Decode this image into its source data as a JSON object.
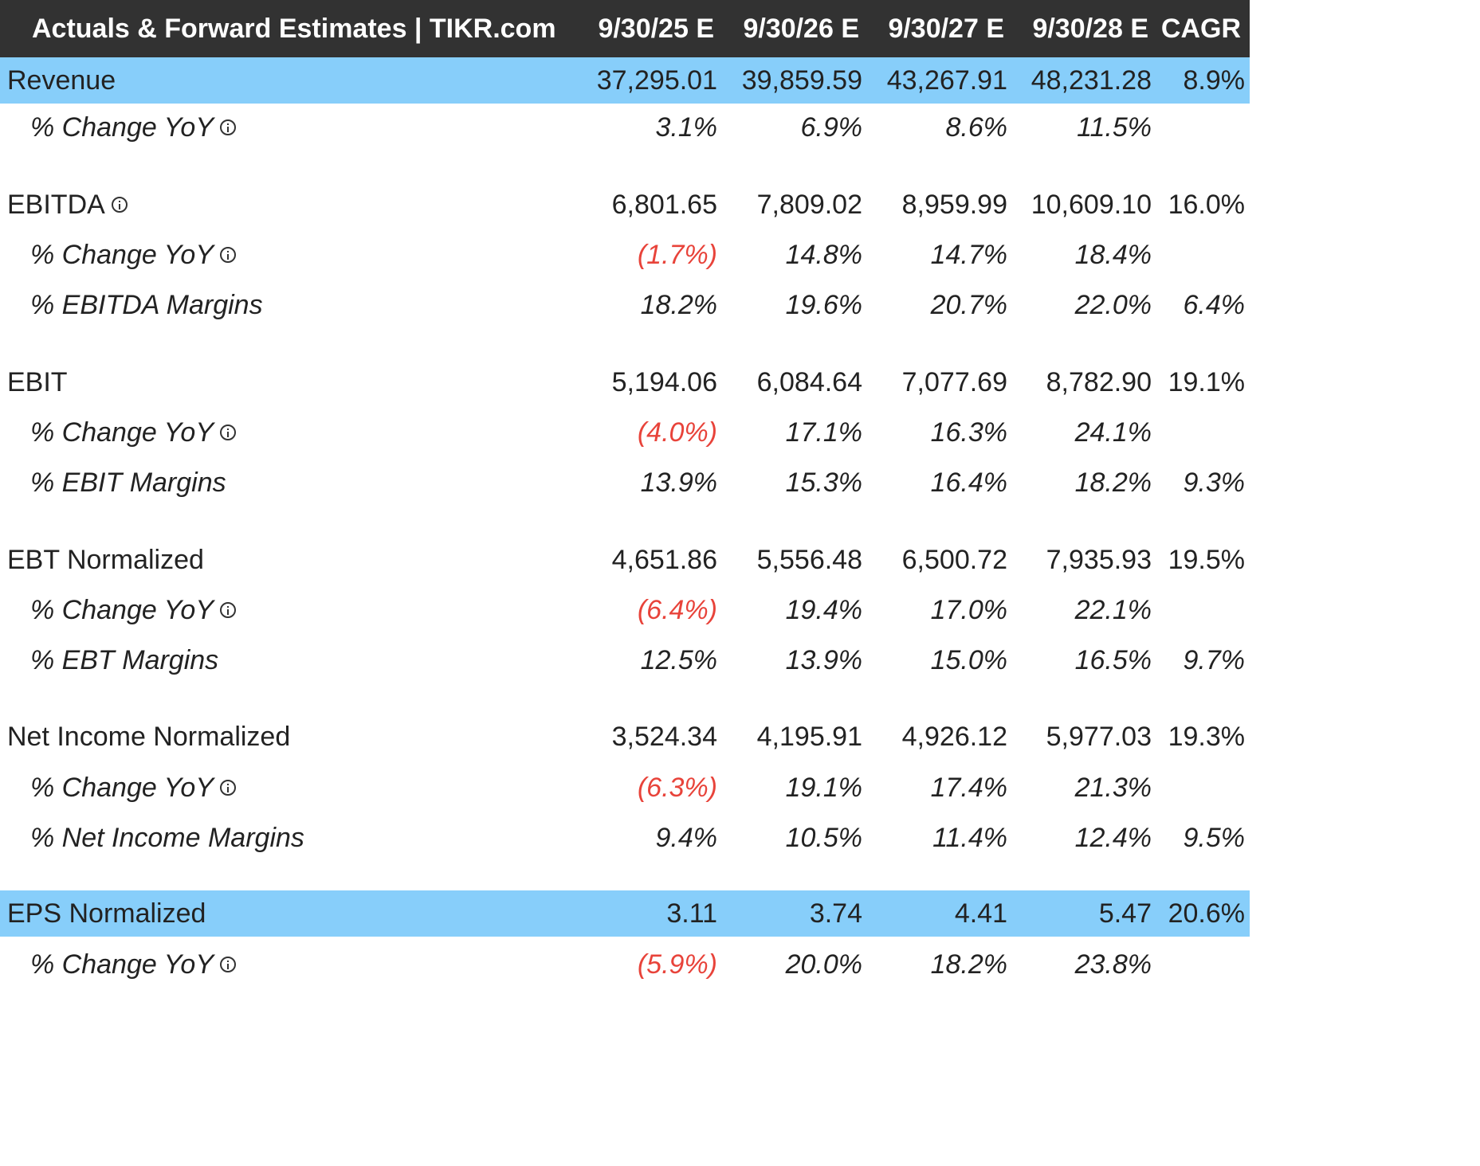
{
  "header": {
    "title": "Actuals & Forward Estimates | TIKR.com",
    "columns": [
      "9/30/25 E",
      "9/30/26 E",
      "9/30/27 E",
      "9/30/28 E",
      "CAGR"
    ]
  },
  "rows": [
    {
      "label": "Revenue",
      "values": [
        "37,295.01",
        "39,859.59",
        "43,267.91",
        "48,231.28",
        "8.9%"
      ]
    },
    {
      "label": "% Change YoY",
      "values": [
        "3.1%",
        "6.9%",
        "8.6%",
        "11.5%",
        ""
      ]
    },
    {
      "label": "EBITDA",
      "values": [
        "6,801.65",
        "7,809.02",
        "8,959.99",
        "10,609.10",
        "16.0%"
      ]
    },
    {
      "label": "% Change YoY",
      "values": [
        "(1.7%)",
        "14.8%",
        "14.7%",
        "18.4%",
        ""
      ]
    },
    {
      "label": "% EBITDA Margins",
      "values": [
        "18.2%",
        "19.6%",
        "20.7%",
        "22.0%",
        "6.4%"
      ]
    },
    {
      "label": "EBIT",
      "values": [
        "5,194.06",
        "6,084.64",
        "7,077.69",
        "8,782.90",
        "19.1%"
      ]
    },
    {
      "label": "% Change YoY",
      "values": [
        "(4.0%)",
        "17.1%",
        "16.3%",
        "24.1%",
        ""
      ]
    },
    {
      "label": "% EBIT Margins",
      "values": [
        "13.9%",
        "15.3%",
        "16.4%",
        "18.2%",
        "9.3%"
      ]
    },
    {
      "label": "EBT Normalized",
      "values": [
        "4,651.86",
        "5,556.48",
        "6,500.72",
        "7,935.93",
        "19.5%"
      ]
    },
    {
      "label": "% Change YoY",
      "values": [
        "(6.4%)",
        "19.4%",
        "17.0%",
        "22.1%",
        ""
      ]
    },
    {
      "label": "% EBT Margins",
      "values": [
        "12.5%",
        "13.9%",
        "15.0%",
        "16.5%",
        "9.7%"
      ]
    },
    {
      "label": "Net Income Normalized",
      "values": [
        "3,524.34",
        "4,195.91",
        "4,926.12",
        "5,977.03",
        "19.3%"
      ]
    },
    {
      "label": "% Change YoY",
      "values": [
        "(6.3%)",
        "19.1%",
        "17.4%",
        "21.3%",
        ""
      ]
    },
    {
      "label": "% Net Income Margins",
      "values": [
        "9.4%",
        "10.5%",
        "11.4%",
        "12.4%",
        "9.5%"
      ]
    },
    {
      "label": "EPS Normalized",
      "values": [
        "3.11",
        "3.74",
        "4.41",
        "5.47",
        "20.6%"
      ]
    },
    {
      "label": "% Change YoY",
      "values": [
        "(5.9%)",
        "20.0%",
        "18.2%",
        "23.8%",
        ""
      ]
    }
  ],
  "colors": {
    "header_bg": "#323232",
    "highlight_bg": "#87cefa",
    "negative_text": "#e8433a"
  }
}
